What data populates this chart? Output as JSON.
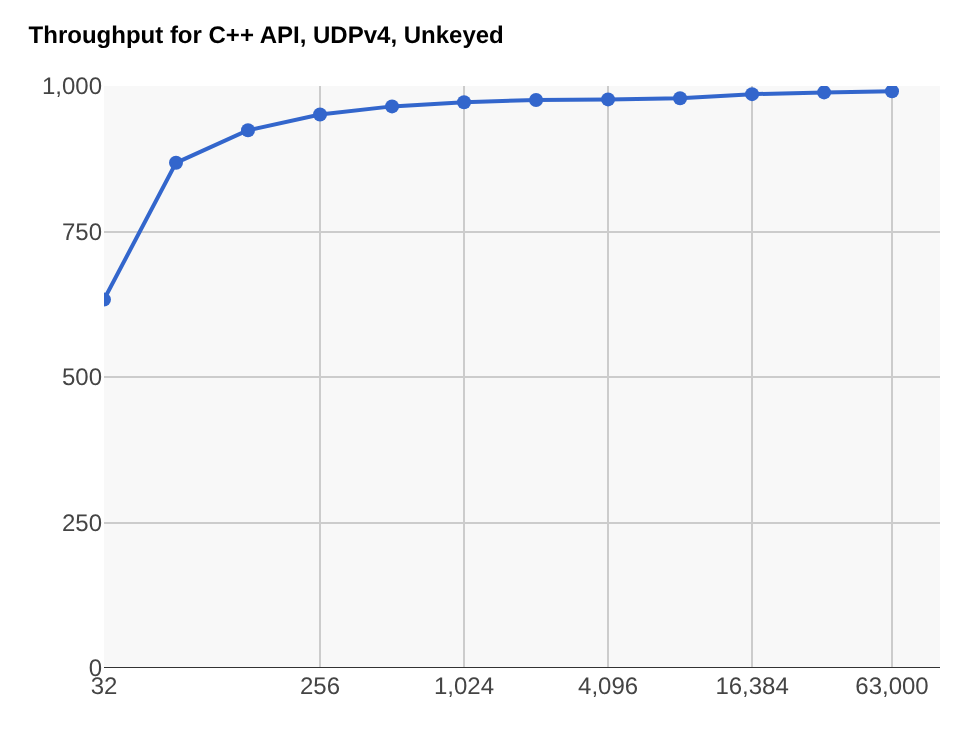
{
  "chart_data": {
    "type": "line",
    "title": "Throughput for C++ API, UDPv4, Unkeyed",
    "x": [
      32,
      64,
      128,
      256,
      512,
      1024,
      2048,
      4096,
      8192,
      16384,
      32768,
      63000
    ],
    "series": [
      {
        "color": "#3366cc",
        "values": [
          633,
          868,
          924,
          951,
          965,
          972,
          976,
          977,
          979,
          986,
          989,
          991
        ]
      }
    ],
    "log": "x",
    "xlim": [
      32,
      100000
    ],
    "xticks": [
      32,
      {
        "value": 256,
        "label": "256"
      },
      {
        "value": 1024,
        "label": "1,024"
      },
      {
        "value": 4096,
        "label": "4,096"
      },
      {
        "value": 16384,
        "label": "16,384"
      },
      {
        "value": 63000,
        "label": "63,000"
      }
    ],
    "ylim": [
      0,
      1000
    ],
    "yticks": [
      0,
      250,
      500,
      750,
      {
        "value": 1000,
        "label": "1,000"
      }
    ],
    "grid": true,
    "marker": "circle",
    "line_style": "solid",
    "legend": false
  }
}
